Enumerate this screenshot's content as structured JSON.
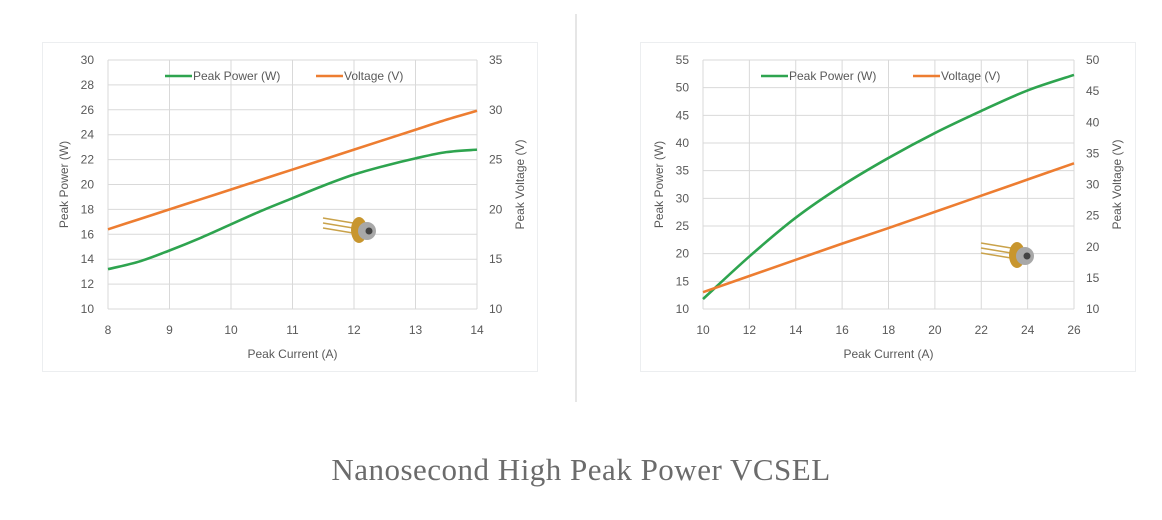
{
  "caption": "Nanosecond High Peak Power VCSEL",
  "colors": {
    "power": "#2ea44f",
    "voltage": "#ed7d31",
    "grid": "#d9d9d9",
    "text": "#595959"
  },
  "chart_data": [
    {
      "type": "line",
      "xlabel": "Peak Current (A)",
      "ylabel": "Peak Power (W)",
      "y2label": "Peak Voltage (V)",
      "xlim": [
        8,
        14
      ],
      "ylim": [
        10,
        30
      ],
      "y2lim": [
        10,
        35
      ],
      "xticks": [
        8,
        9,
        10,
        11,
        12,
        13,
        14
      ],
      "yticks": [
        10,
        12,
        14,
        16,
        18,
        20,
        22,
        24,
        26,
        28,
        30
      ],
      "y2ticks": [
        10,
        15,
        20,
        25,
        30,
        35
      ],
      "grid": true,
      "legend_position": "top",
      "image": "laser-diode-package",
      "x": [
        8,
        8.5,
        9,
        9.5,
        10,
        10.5,
        11,
        11.5,
        12,
        12.5,
        13,
        13.5,
        14
      ],
      "series": [
        {
          "name": "Peak Power (W)",
          "axis": "left",
          "color": "#2ea44f",
          "values": [
            13.2,
            13.8,
            14.7,
            15.7,
            16.8,
            17.9,
            18.9,
            19.9,
            20.8,
            21.5,
            22.1,
            22.6,
            22.8
          ]
        },
        {
          "name": "Voltage (V)",
          "axis": "right",
          "color": "#ed7d31",
          "values": [
            18.0,
            19.0,
            20.0,
            21.0,
            22.0,
            23.0,
            24.0,
            25.0,
            26.0,
            27.0,
            28.0,
            29.0,
            29.9
          ]
        }
      ]
    },
    {
      "type": "line",
      "xlabel": "Peak Current (A)",
      "ylabel": "Peak Power (W)",
      "y2label": "Peak Voltage (V)",
      "xlim": [
        10,
        26
      ],
      "ylim": [
        10,
        55
      ],
      "y2lim": [
        10,
        50
      ],
      "xticks": [
        10,
        12,
        14,
        16,
        18,
        20,
        22,
        24,
        26
      ],
      "yticks": [
        10,
        15,
        20,
        25,
        30,
        35,
        40,
        45,
        50,
        55
      ],
      "y2ticks": [
        10,
        15,
        20,
        25,
        30,
        35,
        40,
        45,
        50
      ],
      "grid": true,
      "legend_position": "top",
      "image": "laser-diode-package",
      "x": [
        10,
        12,
        14,
        16,
        18,
        20,
        22,
        24,
        26
      ],
      "series": [
        {
          "name": "Peak Power (W)",
          "axis": "left",
          "color": "#2ea44f",
          "values": [
            11.8,
            19.5,
            26.5,
            32.3,
            37.3,
            41.8,
            45.8,
            49.5,
            52.3
          ]
        },
        {
          "name": "Voltage (V)",
          "axis": "right",
          "color": "#ed7d31",
          "values": [
            12.7,
            15.3,
            17.9,
            20.5,
            23.0,
            25.6,
            28.2,
            30.8,
            33.4
          ]
        }
      ]
    }
  ]
}
